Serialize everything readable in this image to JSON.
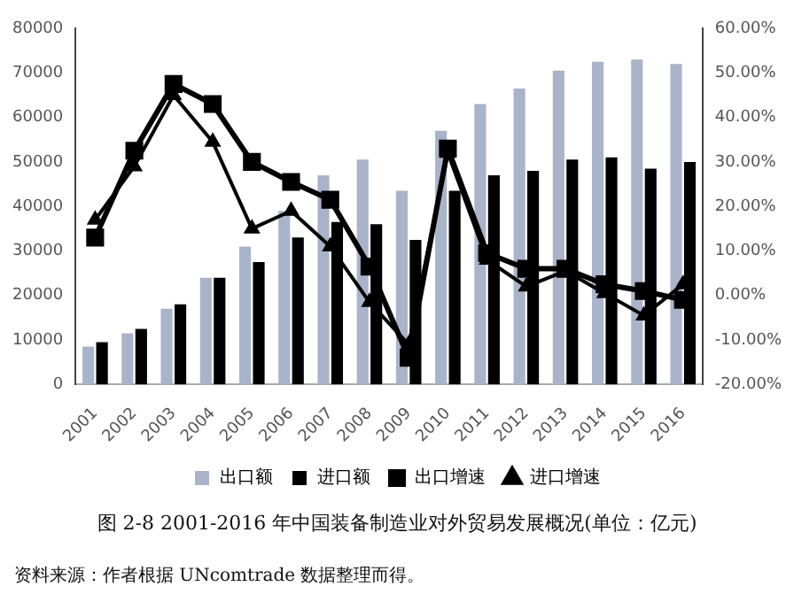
{
  "chart_data": {
    "type": "bar",
    "title": "图 2-8 2001-2016 年中国装备制造业对外贸易发展概况(单位：亿元)",
    "annotations": [
      "资料来源：作者根据 UNcomtrade 数据整理而得。"
    ],
    "categories": [
      "2001",
      "2002",
      "2003",
      "2004",
      "2005",
      "2006",
      "2007",
      "2008",
      "2009",
      "2010",
      "2011",
      "2012",
      "2013",
      "2014",
      "2015",
      "2016"
    ],
    "series": [
      {
        "name": "出口额",
        "color": "#a9b3c9",
        "values": [
          8500,
          11500,
          17000,
          24000,
          31000,
          39000,
          47000,
          50500,
          43500,
          57000,
          63000,
          66500,
          70500,
          72500,
          73000,
          72000
        ]
      },
      {
        "name": "进口额",
        "color": "#000000",
        "values": [
          9500,
          12500,
          18000,
          24000,
          27500,
          33000,
          36500,
          36000,
          32500,
          43500,
          47000,
          48000,
          50500,
          51000,
          48500,
          50000
        ]
      },
      {
        "name": "出口增速",
        "type": "line",
        "axis": "y2",
        "marker": "square",
        "color": "#000000",
        "values": [
          13,
          32.5,
          47.5,
          43,
          30,
          25.5,
          21.5,
          6.5,
          -14,
          33,
          9.5,
          6,
          6,
          2.5,
          1,
          -1
        ]
      },
      {
        "name": "进口增速",
        "type": "line",
        "axis": "y2",
        "marker": "triangle",
        "color": "#000000",
        "values": [
          17,
          29,
          45,
          34.5,
          15,
          19,
          11,
          -1.5,
          -11,
          32,
          8,
          2,
          5.5,
          0.5,
          -4.5,
          2.5
        ]
      }
    ],
    "ylim": [
      0,
      80000
    ],
    "yticks": [
      0,
      10000,
      20000,
      30000,
      40000,
      50000,
      60000,
      70000,
      80000
    ],
    "y2lim": [
      -20,
      60
    ],
    "y2ticks": [
      {
        "value": -20,
        "label": "-20.00%"
      },
      {
        "value": -10,
        "label": "-10.00%"
      },
      {
        "value": 0,
        "label": "0.00%"
      },
      {
        "value": 10,
        "label": "10.00%"
      },
      {
        "value": 20,
        "label": "20.00%"
      },
      {
        "value": 30,
        "label": "30.00%"
      },
      {
        "value": 40,
        "label": "40.00%"
      },
      {
        "value": 50,
        "label": "50.00%"
      },
      {
        "value": 60,
        "label": "60.00%"
      }
    ],
    "grid": false,
    "legend": "bottom"
  }
}
